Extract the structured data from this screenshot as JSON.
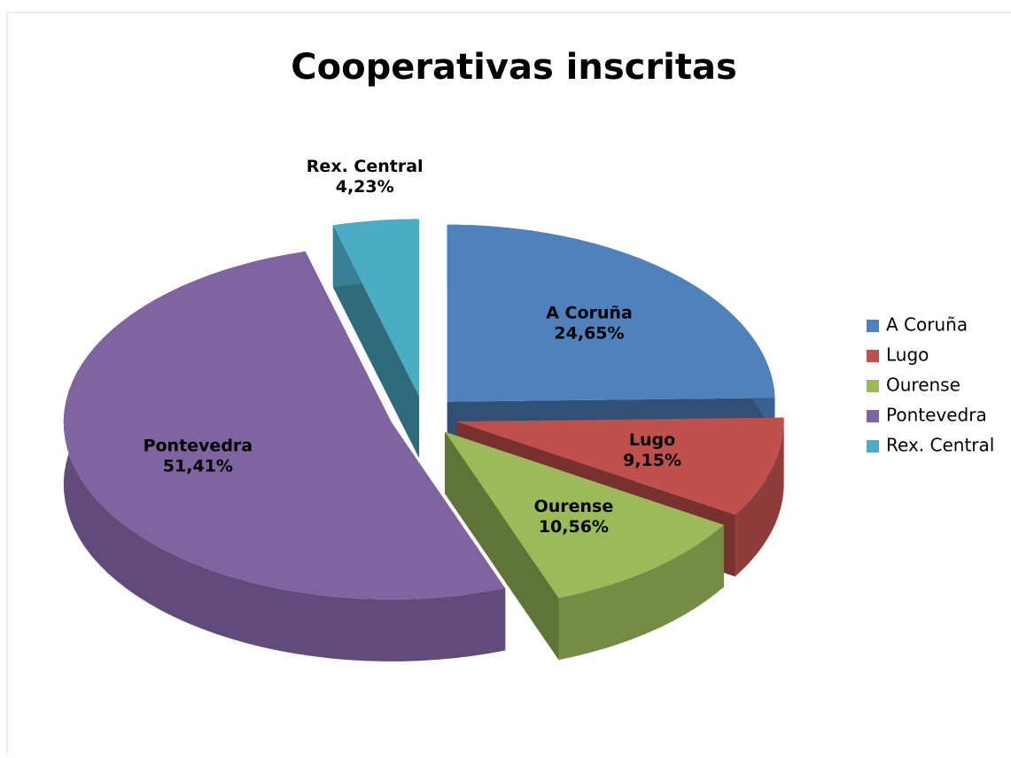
{
  "chart_data": {
    "type": "pie3d",
    "title": "Cooperativas inscritas",
    "categories": [
      "A Coruña",
      "Lugo",
      "Ourense",
      "Pontevedra",
      "Rex. Central"
    ],
    "values": [
      24.65,
      9.15,
      10.56,
      51.41,
      4.23
    ],
    "value_labels": [
      "24,65%",
      "9,15%",
      "10,56%",
      "51,41%",
      "4,23%"
    ],
    "colors": [
      "#4f81bd",
      "#c0504d",
      "#9bbb59",
      "#8064a2",
      "#4bacc6"
    ],
    "legend": "right"
  }
}
